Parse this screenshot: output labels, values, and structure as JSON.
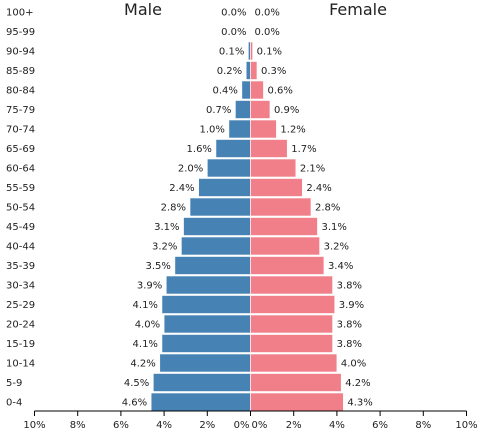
{
  "chart_data": {
    "type": "bar",
    "orientation": "horizontal-pyramid",
    "categories": [
      "100+",
      "95-99",
      "90-94",
      "85-89",
      "80-84",
      "75-79",
      "70-74",
      "65-69",
      "60-64",
      "55-59",
      "50-54",
      "45-49",
      "40-44",
      "35-39",
      "30-34",
      "25-29",
      "20-24",
      "15-19",
      "10-14",
      "5-9",
      "0-4"
    ],
    "series": [
      {
        "name": "Male",
        "color": "#4682b4",
        "values": [
          0.0,
          0.0,
          0.1,
          0.2,
          0.4,
          0.7,
          1.0,
          1.6,
          2.0,
          2.4,
          2.8,
          3.1,
          3.2,
          3.5,
          3.9,
          4.1,
          4.0,
          4.1,
          4.2,
          4.5,
          4.6
        ],
        "labels": [
          "0.0%",
          "0.0%",
          "0.1%",
          "0.2%",
          "0.4%",
          "0.7%",
          "1.0%",
          "1.6%",
          "2.0%",
          "2.4%",
          "2.8%",
          "3.1%",
          "3.2%",
          "3.5%",
          "3.9%",
          "4.1%",
          "4.0%",
          "4.1%",
          "4.2%",
          "4.5%",
          "4.6%"
        ]
      },
      {
        "name": "Female",
        "color": "#f07f8a",
        "values": [
          0.0,
          0.0,
          0.1,
          0.3,
          0.6,
          0.9,
          1.2,
          1.7,
          2.1,
          2.4,
          2.8,
          3.1,
          3.2,
          3.4,
          3.8,
          3.9,
          3.8,
          3.8,
          4.0,
          4.2,
          4.3
        ],
        "labels": [
          "0.0%",
          "0.0%",
          "0.1%",
          "0.3%",
          "0.6%",
          "0.9%",
          "1.2%",
          "1.7%",
          "2.1%",
          "2.4%",
          "2.8%",
          "3.1%",
          "3.2%",
          "3.4%",
          "3.8%",
          "3.9%",
          "3.8%",
          "3.8%",
          "4.0%",
          "4.2%",
          "4.3%"
        ]
      }
    ],
    "xlim": [
      0,
      10
    ],
    "x_ticks_left": [
      "10%",
      "8%",
      "6%",
      "4%",
      "2%",
      "0%"
    ],
    "x_ticks_right": [
      "0%",
      "2%",
      "4%",
      "6%",
      "8%",
      "10%"
    ],
    "title": "",
    "xlabel": "",
    "ylabel": "",
    "grid": false,
    "legend": "none"
  }
}
